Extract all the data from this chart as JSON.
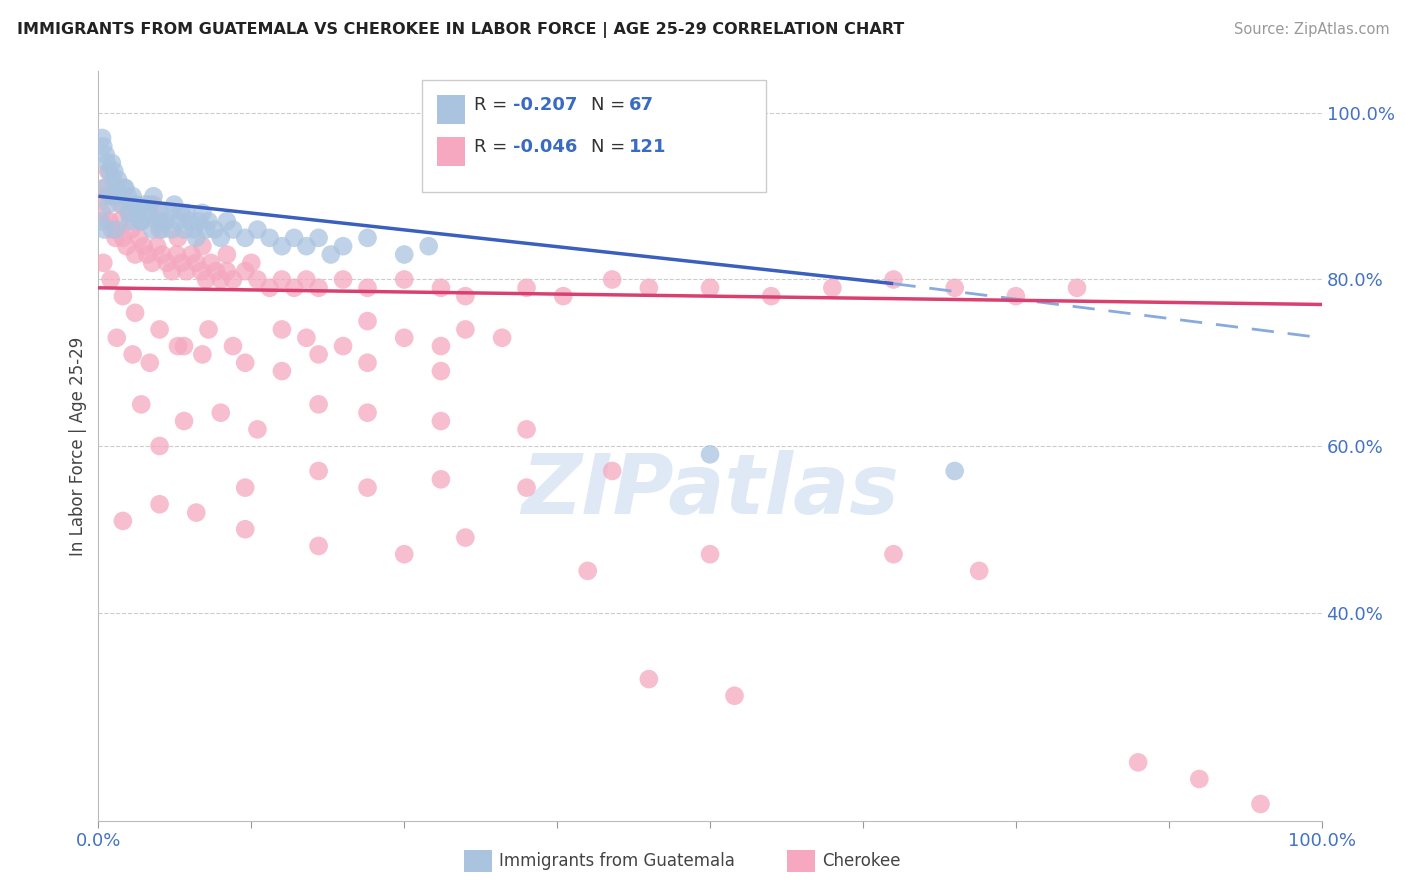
{
  "title": "IMMIGRANTS FROM GUATEMALA VS CHEROKEE IN LABOR FORCE | AGE 25-29 CORRELATION CHART",
  "source": "Source: ZipAtlas.com",
  "ylabel": "In Labor Force | Age 25-29",
  "watermark": "ZIPatlas",
  "legend1_color": "#aac4e0",
  "legend2_color": "#f5a8c0",
  "trend1_color": "#3a5fbf",
  "trend2_color": "#d94070",
  "trend1_dash_color": "#88aadd",
  "xmin": 0,
  "xmax": 100,
  "ymin": 15,
  "ymax": 105,
  "yticks": [
    40,
    60,
    80,
    100
  ],
  "xtick_positions": [
    0,
    12.5,
    25,
    37.5,
    50,
    62.5,
    75,
    87.5,
    100
  ],
  "blue_trend": [
    0,
    90,
    65,
    79.5
  ],
  "blue_dash": [
    65,
    79.5,
    100,
    73
  ],
  "pink_trend": [
    0,
    79,
    100,
    77
  ],
  "blue_dots": [
    [
      0.5,
      91
    ],
    [
      0.8,
      89
    ],
    [
      1.0,
      90
    ],
    [
      1.2,
      92
    ],
    [
      1.5,
      91
    ],
    [
      1.8,
      90
    ],
    [
      2.0,
      89
    ],
    [
      2.2,
      91
    ],
    [
      2.5,
      88
    ],
    [
      2.8,
      90
    ],
    [
      3.0,
      89
    ],
    [
      3.2,
      88
    ],
    [
      3.5,
      87
    ],
    [
      3.8,
      89
    ],
    [
      4.0,
      88
    ],
    [
      4.2,
      89
    ],
    [
      4.5,
      90
    ],
    [
      4.8,
      87
    ],
    [
      5.0,
      88
    ],
    [
      5.2,
      86
    ],
    [
      5.5,
      87
    ],
    [
      5.8,
      88
    ],
    [
      6.0,
      86
    ],
    [
      6.2,
      89
    ],
    [
      6.5,
      87
    ],
    [
      6.8,
      88
    ],
    [
      7.0,
      86
    ],
    [
      7.2,
      88
    ],
    [
      7.5,
      87
    ],
    [
      7.8,
      86
    ],
    [
      8.0,
      85
    ],
    [
      8.2,
      87
    ],
    [
      8.5,
      88
    ],
    [
      8.8,
      86
    ],
    [
      9.0,
      87
    ],
    [
      9.5,
      86
    ],
    [
      10.0,
      85
    ],
    [
      10.5,
      87
    ],
    [
      11.0,
      86
    ],
    [
      12.0,
      85
    ],
    [
      13.0,
      86
    ],
    [
      14.0,
      85
    ],
    [
      15.0,
      84
    ],
    [
      16.0,
      85
    ],
    [
      17.0,
      84
    ],
    [
      18.0,
      85
    ],
    [
      19.0,
      83
    ],
    [
      20.0,
      84
    ],
    [
      22.0,
      85
    ],
    [
      25.0,
      83
    ],
    [
      27.0,
      84
    ],
    [
      0.3,
      97
    ],
    [
      0.4,
      96
    ],
    [
      0.6,
      95
    ],
    [
      0.7,
      94
    ],
    [
      0.9,
      93
    ],
    [
      1.1,
      94
    ],
    [
      1.3,
      93
    ],
    [
      1.6,
      92
    ],
    [
      2.1,
      91
    ],
    [
      2.4,
      90
    ],
    [
      3.1,
      89
    ],
    [
      4.1,
      88
    ],
    [
      5.1,
      87
    ],
    [
      0.2,
      87
    ],
    [
      0.5,
      86
    ],
    [
      1.4,
      86
    ],
    [
      2.6,
      87
    ],
    [
      3.4,
      87
    ],
    [
      4.4,
      86
    ],
    [
      50.0,
      59
    ],
    [
      70.0,
      57
    ]
  ],
  "pink_dots": [
    [
      0.3,
      88
    ],
    [
      0.6,
      90
    ],
    [
      0.9,
      87
    ],
    [
      1.1,
      86
    ],
    [
      1.4,
      85
    ],
    [
      1.7,
      87
    ],
    [
      2.0,
      85
    ],
    [
      2.3,
      84
    ],
    [
      2.7,
      86
    ],
    [
      3.0,
      83
    ],
    [
      3.3,
      85
    ],
    [
      3.7,
      84
    ],
    [
      4.0,
      83
    ],
    [
      4.4,
      82
    ],
    [
      4.8,
      84
    ],
    [
      5.2,
      83
    ],
    [
      5.6,
      82
    ],
    [
      6.0,
      81
    ],
    [
      6.4,
      83
    ],
    [
      6.8,
      82
    ],
    [
      7.2,
      81
    ],
    [
      7.6,
      83
    ],
    [
      8.0,
      82
    ],
    [
      8.4,
      81
    ],
    [
      8.8,
      80
    ],
    [
      9.2,
      82
    ],
    [
      9.6,
      81
    ],
    [
      10.0,
      80
    ],
    [
      10.5,
      81
    ],
    [
      11.0,
      80
    ],
    [
      12.0,
      81
    ],
    [
      13.0,
      80
    ],
    [
      14.0,
      79
    ],
    [
      15.0,
      80
    ],
    [
      16.0,
      79
    ],
    [
      17.0,
      80
    ],
    [
      18.0,
      79
    ],
    [
      20.0,
      80
    ],
    [
      22.0,
      79
    ],
    [
      25.0,
      80
    ],
    [
      28.0,
      79
    ],
    [
      30.0,
      78
    ],
    [
      35.0,
      79
    ],
    [
      38.0,
      78
    ],
    [
      42.0,
      80
    ],
    [
      45.0,
      79
    ],
    [
      50.0,
      79
    ],
    [
      55.0,
      78
    ],
    [
      60.0,
      79
    ],
    [
      65.0,
      80
    ],
    [
      70.0,
      79
    ],
    [
      75.0,
      78
    ],
    [
      80.0,
      79
    ],
    [
      0.5,
      91
    ],
    [
      0.8,
      93
    ],
    [
      1.2,
      90
    ],
    [
      1.8,
      89
    ],
    [
      2.5,
      88
    ],
    [
      3.5,
      87
    ],
    [
      4.5,
      89
    ],
    [
      5.0,
      86
    ],
    [
      6.5,
      85
    ],
    [
      8.5,
      84
    ],
    [
      10.5,
      83
    ],
    [
      12.5,
      82
    ],
    [
      0.4,
      82
    ],
    [
      1.0,
      80
    ],
    [
      2.0,
      78
    ],
    [
      3.0,
      76
    ],
    [
      5.0,
      74
    ],
    [
      7.0,
      72
    ],
    [
      9.0,
      74
    ],
    [
      11.0,
      72
    ],
    [
      15.0,
      74
    ],
    [
      17.0,
      73
    ],
    [
      20.0,
      72
    ],
    [
      22.0,
      75
    ],
    [
      25.0,
      73
    ],
    [
      28.0,
      72
    ],
    [
      30.0,
      74
    ],
    [
      33.0,
      73
    ],
    [
      1.5,
      73
    ],
    [
      2.8,
      71
    ],
    [
      4.2,
      70
    ],
    [
      6.5,
      72
    ],
    [
      8.5,
      71
    ],
    [
      12.0,
      70
    ],
    [
      15.0,
      69
    ],
    [
      18.0,
      71
    ],
    [
      22.0,
      70
    ],
    [
      28.0,
      69
    ],
    [
      3.5,
      65
    ],
    [
      7.0,
      63
    ],
    [
      10.0,
      64
    ],
    [
      13.0,
      62
    ],
    [
      18.0,
      65
    ],
    [
      22.0,
      64
    ],
    [
      28.0,
      63
    ],
    [
      5.0,
      60
    ],
    [
      35.0,
      62
    ],
    [
      12.0,
      55
    ],
    [
      18.0,
      57
    ],
    [
      22.0,
      55
    ],
    [
      28.0,
      56
    ],
    [
      35.0,
      55
    ],
    [
      42.0,
      57
    ],
    [
      2.0,
      51
    ],
    [
      5.0,
      53
    ],
    [
      8.0,
      52
    ],
    [
      12.0,
      50
    ],
    [
      18.0,
      48
    ],
    [
      25.0,
      47
    ],
    [
      30.0,
      49
    ],
    [
      40.0,
      45
    ],
    [
      50.0,
      47
    ],
    [
      45.0,
      32
    ],
    [
      52.0,
      30
    ],
    [
      65.0,
      47
    ],
    [
      72.0,
      45
    ],
    [
      85.0,
      22
    ],
    [
      90.0,
      20
    ],
    [
      95.0,
      17
    ]
  ]
}
